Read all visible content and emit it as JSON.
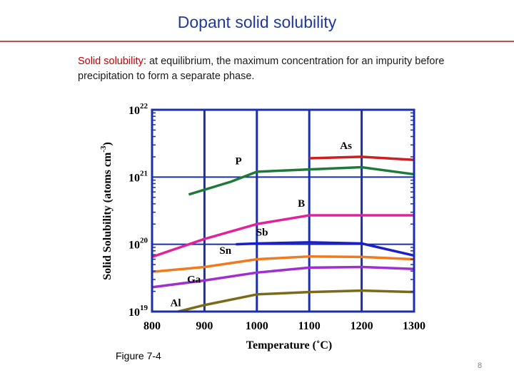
{
  "slide": {
    "title": "Dopant solid solubility",
    "definition_term": "Solid solubility",
    "definition_text": ": at equilibrium, the maximum concentration for an impurity before precipitation to form a separate phase.",
    "caption": "Figure 7-4",
    "page_number": "8"
  },
  "chart_data": {
    "type": "line",
    "title": "",
    "xlabel": "Temperature (˚C)",
    "ylabel": "Solid Solubility (atoms cm-3)",
    "xlim": [
      800,
      1300
    ],
    "ylim_log10": [
      19,
      22
    ],
    "y_scale": "log",
    "x_ticks": [
      "800",
      "900",
      "1000",
      "1100",
      "1200",
      "1300"
    ],
    "y_ticks": [
      {
        "base": "10",
        "exp": "19",
        "value": 1e+19
      },
      {
        "base": "10",
        "exp": "20",
        "value": 1e+20
      },
      {
        "base": "10",
        "exp": "21",
        "value": 1e+21
      },
      {
        "base": "10",
        "exp": "22",
        "value": 1e+22
      }
    ],
    "grid": true,
    "series": [
      {
        "name": "As",
        "color": "#cc1f1f",
        "points": [
          [
            1100,
            1.9e+21
          ],
          [
            1200,
            2e+21
          ],
          [
            1300,
            1.8e+21
          ]
        ]
      },
      {
        "name": "P",
        "color": "#1f7a3a",
        "points": [
          [
            870,
            5.5e+20
          ],
          [
            950,
            8.5e+20
          ],
          [
            1000,
            1.2e+21
          ],
          [
            1100,
            1.3e+21
          ],
          [
            1200,
            1.4e+21
          ],
          [
            1300,
            1.1e+21
          ]
        ]
      },
      {
        "name": "B",
        "color": "#e0239a",
        "points": [
          [
            800,
            6.5e+19
          ],
          [
            900,
            1.2e+20
          ],
          [
            1000,
            2e+20
          ],
          [
            1100,
            2.7e+20
          ],
          [
            1200,
            2.7e+20
          ],
          [
            1300,
            2.7e+20
          ]
        ]
      },
      {
        "name": "Sb",
        "color": "#1a1fc8",
        "points": [
          [
            960,
            1e+20
          ],
          [
            1000,
            1.03e+20
          ],
          [
            1100,
            1.07e+20
          ],
          [
            1200,
            1.03e+20
          ],
          [
            1300,
            6.8e+19
          ]
        ]
      },
      {
        "name": "Sn",
        "color": "#f07a1e",
        "points": [
          [
            800,
            3.9e+19
          ],
          [
            900,
            4.6e+19
          ],
          [
            1000,
            6e+19
          ],
          [
            1100,
            6.6e+19
          ],
          [
            1200,
            6.5e+19
          ],
          [
            1300,
            6e+19
          ]
        ]
      },
      {
        "name": "Ga",
        "color": "#a02fd0",
        "points": [
          [
            800,
            2.3e+19
          ],
          [
            900,
            2.9e+19
          ],
          [
            1000,
            3.8e+19
          ],
          [
            1100,
            4.5e+19
          ],
          [
            1200,
            4.6e+19
          ],
          [
            1300,
            4.3e+19
          ]
        ]
      },
      {
        "name": "Al",
        "color": "#7a6a1a",
        "points": [
          [
            850,
            1e+19
          ],
          [
            900,
            1.25e+19
          ],
          [
            1000,
            1.8e+19
          ],
          [
            1100,
            1.95e+19
          ],
          [
            1200,
            2.05e+19
          ],
          [
            1300,
            1.95e+19
          ]
        ]
      }
    ],
    "series_label_text": {
      "As": "As",
      "P": "P",
      "B": "B",
      "Sb": "Sb",
      "Sn": "Sn",
      "Ga": "Ga",
      "Al": "Al"
    }
  }
}
